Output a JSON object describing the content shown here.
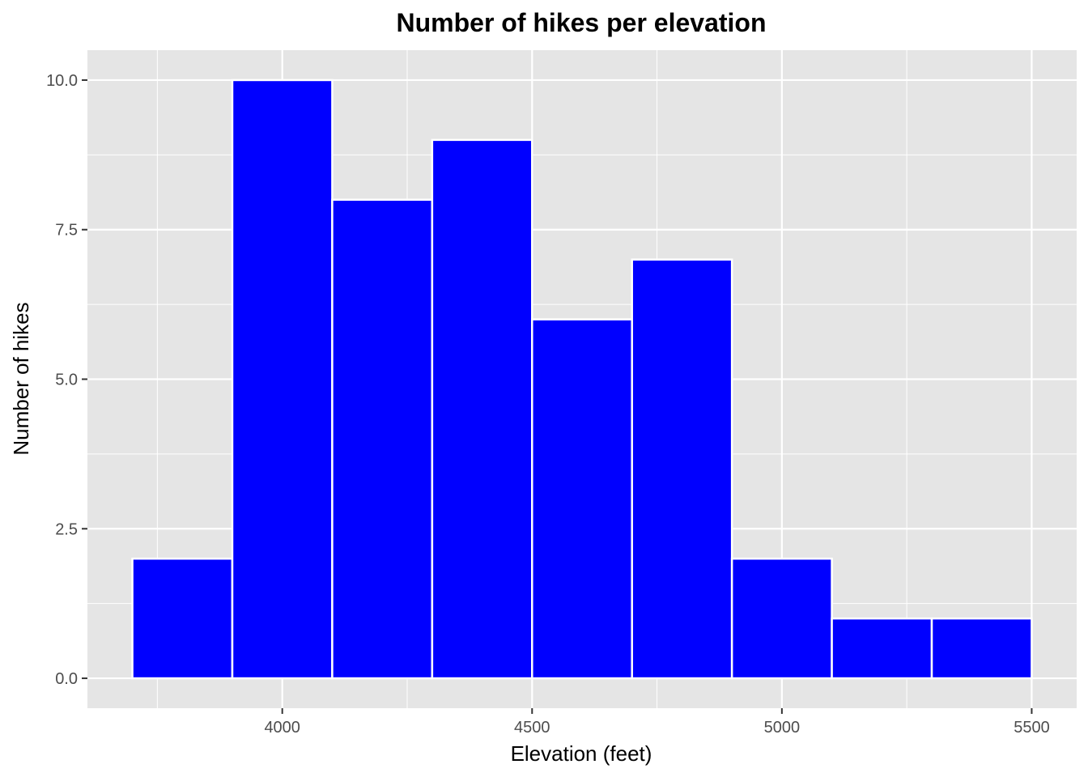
{
  "chart_data": {
    "type": "bar",
    "title": "Number of hikes per elevation",
    "xlabel": "Elevation (feet)",
    "ylabel": "Number of hikes",
    "bins": [
      {
        "x0": 3700,
        "x1": 3900,
        "count": 2
      },
      {
        "x0": 3900,
        "x1": 4100,
        "count": 10
      },
      {
        "x0": 4100,
        "x1": 4300,
        "count": 8
      },
      {
        "x0": 4300,
        "x1": 4500,
        "count": 9
      },
      {
        "x0": 4500,
        "x1": 4700,
        "count": 6
      },
      {
        "x0": 4700,
        "x1": 4900,
        "count": 7
      },
      {
        "x0": 4900,
        "x1": 5100,
        "count": 2
      },
      {
        "x0": 5100,
        "x1": 5300,
        "count": 1
      },
      {
        "x0": 5300,
        "x1": 5500,
        "count": 1
      }
    ],
    "xlim": [
      3610,
      5590
    ],
    "ylim": [
      -0.5,
      10.5
    ],
    "x_ticks": [
      {
        "value": 4000,
        "label": "4000"
      },
      {
        "value": 4500,
        "label": "4500"
      },
      {
        "value": 5000,
        "label": "5000"
      },
      {
        "value": 5500,
        "label": "5500"
      }
    ],
    "x_minor": [
      3750,
      4250,
      4750,
      5250
    ],
    "y_ticks": [
      {
        "value": 0,
        "label": "0.0"
      },
      {
        "value": 2.5,
        "label": "2.5"
      },
      {
        "value": 5,
        "label": "5.0"
      },
      {
        "value": 7.5,
        "label": "7.5"
      },
      {
        "value": 10,
        "label": "10.0"
      }
    ],
    "y_minor": [
      1.25,
      3.75,
      6.25,
      8.75
    ],
    "grid": true,
    "colors": {
      "bar_fill": "#0000ff",
      "bar_outline": "#ffffff",
      "panel_bg": "#e5e5e5",
      "grid": "#ffffff"
    }
  }
}
